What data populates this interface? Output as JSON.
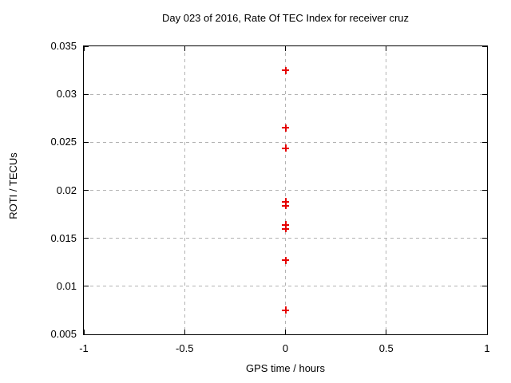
{
  "chart_data": {
    "type": "scatter",
    "title": "Day 023 of 2016, Rate Of TEC Index for receiver cruz",
    "xlabel": "GPS time / hours",
    "ylabel": "ROTI / TECUs",
    "xlim": [
      -1,
      1
    ],
    "ylim": [
      0.005,
      0.035
    ],
    "x_ticks": [
      -1,
      -0.5,
      0,
      0.5,
      1
    ],
    "x_tick_labels": [
      "-1",
      "-0.5",
      "0",
      "0.5",
      "1"
    ],
    "y_ticks": [
      0.005,
      0.01,
      0.015,
      0.02,
      0.025,
      0.03,
      0.035
    ],
    "y_tick_labels": [
      "0.005",
      "0.01",
      "0.015",
      "0.02",
      "0.025",
      "0.03",
      "0.035"
    ],
    "grid": true,
    "legend": false,
    "series": [
      {
        "name": "ROTI",
        "marker": "plus",
        "x": [
          0,
          0,
          0,
          0,
          0,
          0,
          0,
          0,
          0
        ],
        "y": [
          0.0325,
          0.0265,
          0.0244,
          0.0188,
          0.0184,
          0.0164,
          0.016,
          0.0127,
          0.0075
        ]
      }
    ],
    "style": {
      "marker_color": "#e60000",
      "grid_color": "#b3b3b3",
      "border_color": "#000000",
      "text_color": "#000000",
      "background": "#ffffff"
    }
  }
}
